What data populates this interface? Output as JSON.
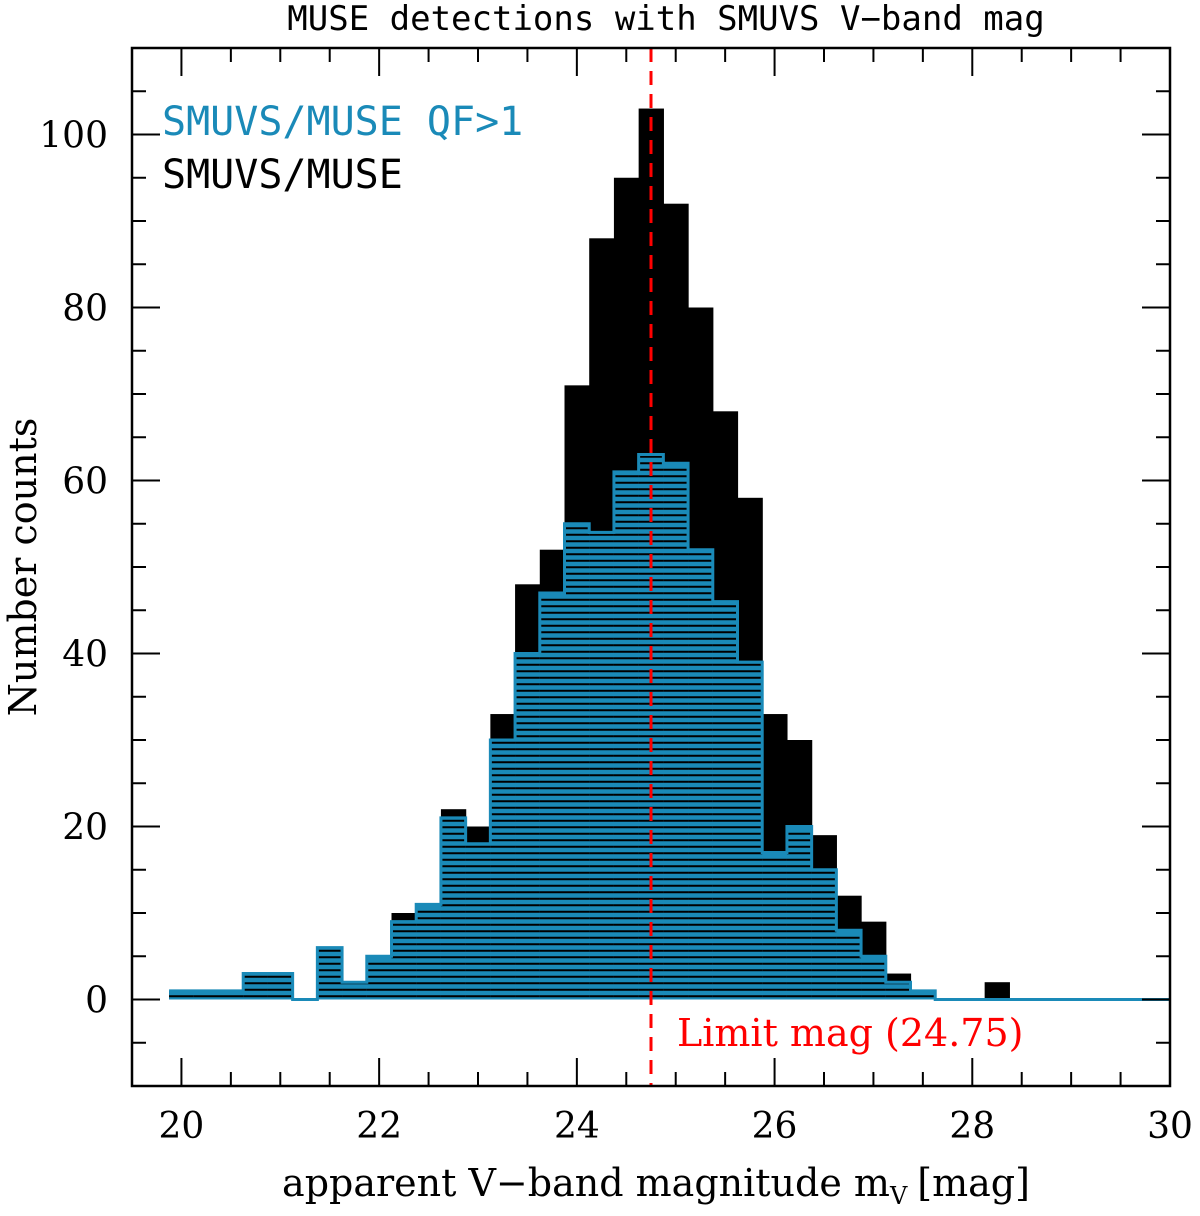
{
  "chart_data": {
    "type": "histogram",
    "title": "MUSE detections with SMUVS V−band mag",
    "xlabel": "apparent V−band magnitude m",
    "xlabel_subscript": "V",
    "xlabel_suffix": "[mag]",
    "ylabel": "Number counts",
    "xlim": [
      19.5,
      30
    ],
    "ylim": [
      -10,
      110
    ],
    "xticks": [
      20,
      22,
      24,
      26,
      28,
      30
    ],
    "yticks": [
      0,
      20,
      40,
      60,
      80,
      100
    ],
    "bin_width": 0.25,
    "bin_start": 19.875,
    "series": [
      {
        "name": "SMUVS/MUSE",
        "color": "#000000",
        "style": "filled",
        "values": [
          1,
          1,
          1,
          3,
          3,
          0,
          6,
          2,
          5,
          10,
          11,
          22,
          20,
          33,
          48,
          52,
          71,
          88,
          95,
          103,
          92,
          80,
          68,
          58,
          33,
          30,
          19,
          12,
          9,
          3,
          1,
          0,
          0,
          2,
          0,
          0,
          0,
          0,
          0,
          0,
          0
        ]
      },
      {
        "name": "SMUVS/MUSE QF>1",
        "color": "#1a8ab8",
        "style": "hatched",
        "values": [
          1,
          1,
          1,
          3,
          3,
          0,
          6,
          2,
          5,
          9,
          11,
          21,
          18,
          30,
          40,
          47,
          55,
          54,
          61,
          63,
          62,
          52,
          46,
          39,
          17,
          20,
          15,
          8,
          5,
          2,
          1,
          0,
          0,
          0,
          0,
          0,
          0,
          0,
          0,
          0,
          0
        ]
      }
    ],
    "limit_line": {
      "x": 24.75,
      "color": "#ff0000",
      "label": "Limit mag (24.75)"
    },
    "legend_placement": "top-left"
  }
}
